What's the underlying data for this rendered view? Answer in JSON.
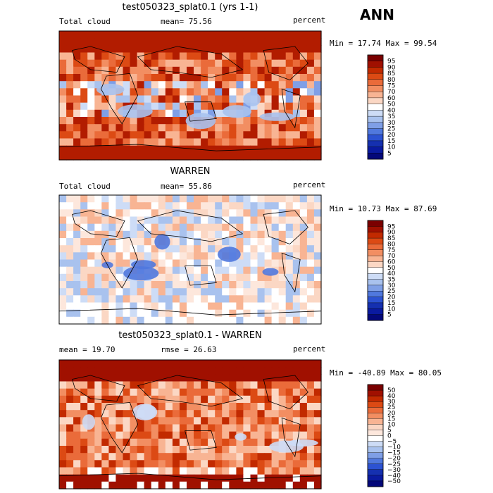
{
  "season": "ANN",
  "panels": [
    {
      "title": "test050323_splat0.1 (yrs 1-1)",
      "field": "Total cloud",
      "stat_text": "mean=  75.56",
      "extra_text": "",
      "units": "percent",
      "minmax": "Min =  17.74 Max =  99.54",
      "colorbar": {
        "labels": [
          "95",
          "90",
          "85",
          "80",
          "75",
          "70",
          "60",
          "50",
          "40",
          "35",
          "30",
          "25",
          "20",
          "15",
          "10",
          "5"
        ],
        "colors": [
          "#7a0000",
          "#a01000",
          "#c22a00",
          "#dc4a14",
          "#ea6b3a",
          "#f28e62",
          "#f8b493",
          "#fbd7c4",
          "#ffffff",
          "#cddcf6",
          "#a9c2ee",
          "#7f9fe6",
          "#5078de",
          "#2c52d2",
          "#1530b0",
          "#0a1aa0",
          "#04087a"
        ]
      },
      "map_colors": [
        "#b21c00",
        "#dc4a14",
        "#ea6b3a",
        "#f28e62",
        "#f8b493",
        "#fbd7c4",
        "#ffffff",
        "#cddcf6",
        "#a9c2ee",
        "#7f9fe6"
      ]
    },
    {
      "title": "WARREN",
      "field": "Total cloud",
      "stat_text": "mean=  55.86",
      "extra_text": "",
      "units": "percent",
      "minmax": "Min =  10.73 Max =  87.69",
      "colorbar": {
        "labels": [
          "95",
          "90",
          "85",
          "80",
          "75",
          "70",
          "60",
          "50",
          "40",
          "35",
          "30",
          "25",
          "20",
          "15",
          "10",
          "5"
        ],
        "colors": [
          "#7a0000",
          "#a01000",
          "#c22a00",
          "#dc4a14",
          "#ea6b3a",
          "#f28e62",
          "#f8b493",
          "#fbd7c4",
          "#ffffff",
          "#cddcf6",
          "#a9c2ee",
          "#7f9fe6",
          "#5078de",
          "#2c52d2",
          "#1530b0",
          "#0a1aa0",
          "#04087a"
        ]
      },
      "map_colors": [
        "#f8b493",
        "#fbd7c4",
        "#fde7dc",
        "#ffffff",
        "#cddcf6",
        "#a9c2ee",
        "#7f9fe6",
        "#f28e62",
        "#5078de",
        "#ea6b3a"
      ]
    },
    {
      "title": "test050323_splat0.1 - WARREN",
      "field": "",
      "stat_text": "mean =  19.70",
      "extra_text": "rmse =  26.63",
      "units": "percent",
      "minmax": "Min = -40.89 Max =  80.05",
      "colorbar": {
        "labels": [
          "50",
          "40",
          "30",
          "25",
          "20",
          "15",
          "10",
          "5",
          "0",
          "−5",
          "−10",
          "−15",
          "−20",
          "−25",
          "−30",
          "−40",
          "−50"
        ],
        "colors": [
          "#7a0000",
          "#a01000",
          "#c22a00",
          "#dc4a14",
          "#ea6b3a",
          "#f28e62",
          "#f8b493",
          "#fbd7c4",
          "#fde7dc",
          "#ffffff",
          "#cddcf6",
          "#a9c2ee",
          "#7f9fe6",
          "#5078de",
          "#2c52d2",
          "#1530b0",
          "#0a1aa0",
          "#04087a"
        ]
      },
      "map_colors": [
        "#c22a00",
        "#dc4a14",
        "#ea6b3a",
        "#f28e62",
        "#f8b493",
        "#fbd7c4",
        "#a01000",
        "#ffffff",
        "#cddcf6",
        "#7f9fe6"
      ]
    }
  ]
}
